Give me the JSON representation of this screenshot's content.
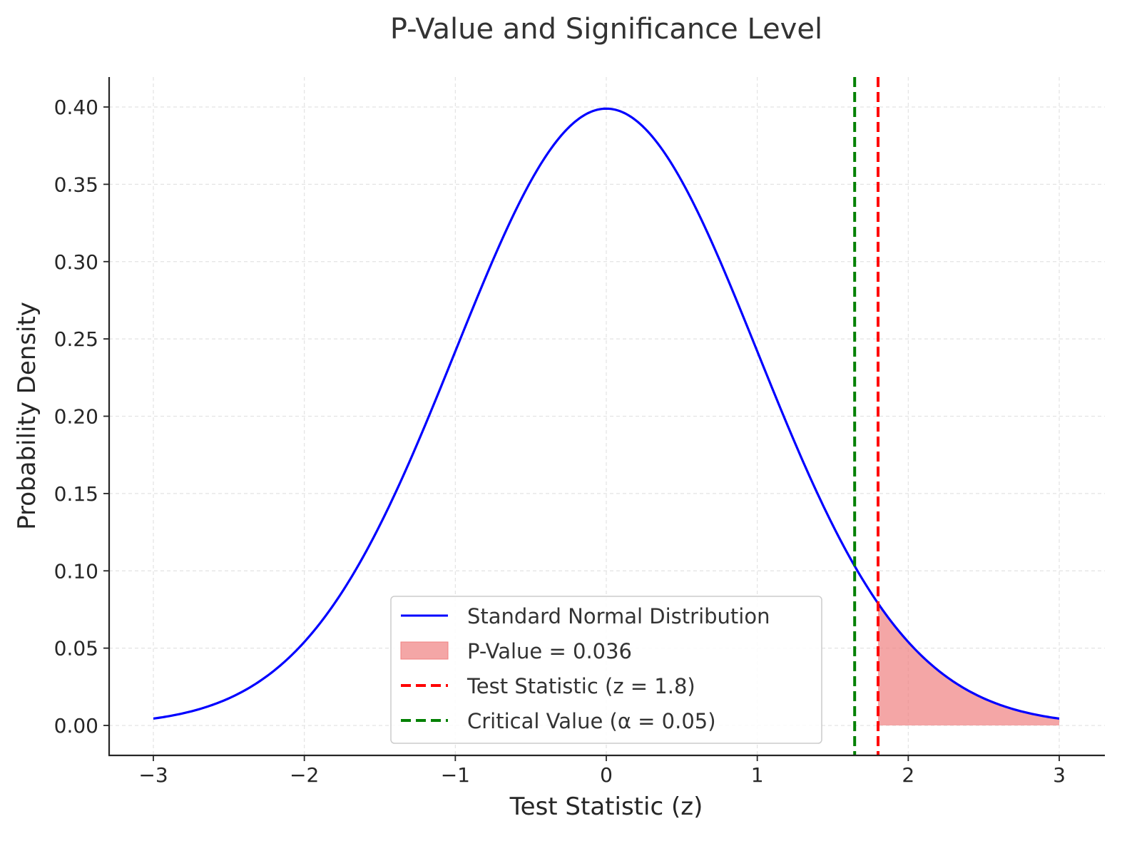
{
  "chart_data": {
    "type": "line",
    "title": "P-Value and Significance Level",
    "xlabel": "Test Statistic (z)",
    "ylabel": "Probability Density",
    "xlim": [
      -3.3,
      3.3
    ],
    "ylim": [
      -0.02,
      0.42
    ],
    "x_ticks": [
      -3,
      -2,
      -1,
      0,
      1,
      2,
      3
    ],
    "x_tick_labels": [
      "−3",
      "−2",
      "−1",
      "0",
      "1",
      "2",
      "3"
    ],
    "y_ticks": [
      0.0,
      0.05,
      0.1,
      0.15,
      0.2,
      0.25,
      0.3,
      0.35,
      0.4
    ],
    "y_tick_labels": [
      "0.00",
      "0.05",
      "0.10",
      "0.15",
      "0.20",
      "0.25",
      "0.30",
      "0.35",
      "0.40"
    ],
    "grid": true,
    "legend_position": "lower-center",
    "series": [
      {
        "name": "Standard Normal Distribution",
        "kind": "line",
        "color": "#0000ff",
        "x": [
          -3.0,
          -2.75,
          -2.5,
          -2.25,
          -2.0,
          -1.75,
          -1.5,
          -1.25,
          -1.0,
          -0.75,
          -0.5,
          -0.25,
          0.0,
          0.25,
          0.5,
          0.75,
          1.0,
          1.25,
          1.5,
          1.75,
          2.0,
          2.25,
          2.5,
          2.75,
          3.0
        ],
        "y": [
          0.0044,
          0.0091,
          0.0175,
          0.0317,
          0.054,
          0.0863,
          0.1295,
          0.1826,
          0.242,
          0.3011,
          0.3521,
          0.3867,
          0.3989,
          0.3867,
          0.3521,
          0.3011,
          0.242,
          0.1826,
          0.1295,
          0.0863,
          0.054,
          0.0317,
          0.0175,
          0.0091,
          0.0044
        ]
      },
      {
        "name": "P-Value = 0.036",
        "kind": "area",
        "color": "#f08080",
        "opacity": 0.7,
        "x": [
          1.8,
          2.0,
          2.25,
          2.5,
          2.75,
          3.0
        ],
        "y": [
          0.079,
          0.054,
          0.0317,
          0.0175,
          0.0091,
          0.0044
        ]
      },
      {
        "name": "Test Statistic (z = 1.8)",
        "kind": "vline",
        "color": "#ff0000",
        "x": 1.8
      },
      {
        "name": "Critical Value (α = 0.05)",
        "kind": "vline",
        "color": "#008000",
        "x": 1.645
      }
    ]
  }
}
